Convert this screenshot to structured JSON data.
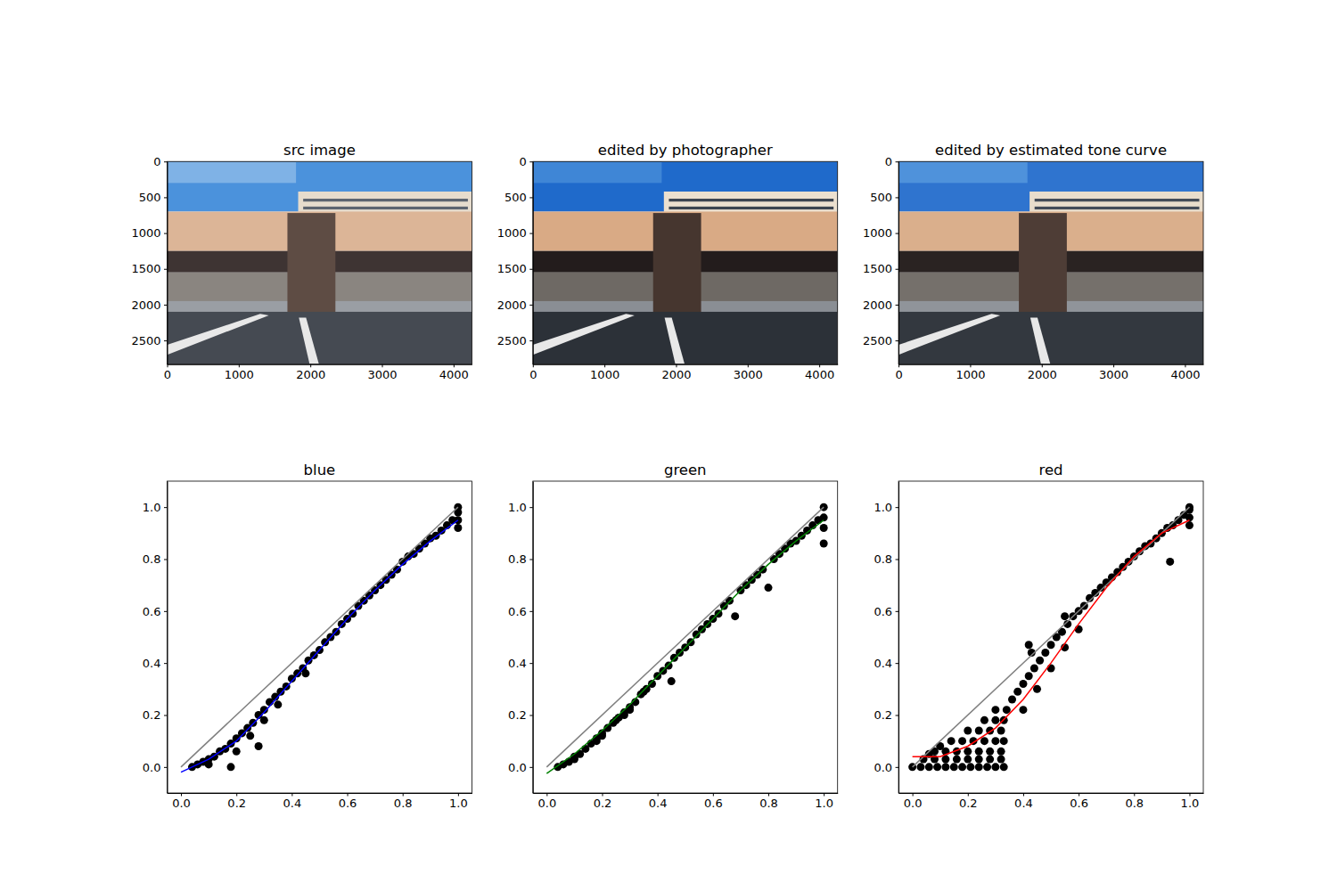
{
  "chart_data": [
    {
      "type": "image",
      "title": "src image",
      "xlim": [
        0,
        4256
      ],
      "ylim": [
        2832,
        0
      ],
      "xticks": [
        0,
        1000,
        2000,
        3000,
        4000
      ],
      "yticks": [
        0,
        500,
        1000,
        1500,
        2000,
        2500
      ]
    },
    {
      "type": "image",
      "title": "edited by photographer",
      "xlim": [
        0,
        4256
      ],
      "ylim": [
        2832,
        0
      ],
      "xticks": [
        0,
        1000,
        2000,
        3000,
        4000
      ],
      "yticks": [
        0,
        500,
        1000,
        1500,
        2000,
        2500
      ]
    },
    {
      "type": "image",
      "title": "edited by estimated tone curve",
      "xlim": [
        0,
        4256
      ],
      "ylim": [
        2832,
        0
      ],
      "xticks": [
        0,
        1000,
        2000,
        3000,
        4000
      ],
      "yticks": [
        0,
        500,
        1000,
        1500,
        2000,
        2500
      ]
    },
    {
      "type": "scatter",
      "title": "blue",
      "xlim": [
        -0.05,
        1.05
      ],
      "ylim": [
        -0.1,
        1.1
      ],
      "xticks": [
        {
          "value": 0,
          "label": "0.0"
        },
        0.2,
        0.4,
        0.6,
        0.8,
        {
          "value": 1,
          "label": "1.0"
        }
      ],
      "yticks": [
        {
          "value": 0,
          "label": "0.0"
        },
        0.2,
        0.4,
        0.6,
        0.8,
        {
          "value": 1,
          "label": "1.0"
        }
      ],
      "series": [
        {
          "type": "scatter",
          "color": "#000000",
          "marker": "circle",
          "x": [
            0.04,
            0.06,
            0.08,
            0.1,
            0.1,
            0.12,
            0.14,
            0.16,
            0.18,
            0.18,
            0.2,
            0.2,
            0.22,
            0.24,
            0.25,
            0.26,
            0.28,
            0.28,
            0.3,
            0.3,
            0.32,
            0.34,
            0.35,
            0.36,
            0.38,
            0.4,
            0.42,
            0.44,
            0.45,
            0.46,
            0.48,
            0.5,
            0.52,
            0.54,
            0.56,
            0.58,
            0.6,
            0.62,
            0.64,
            0.66,
            0.68,
            0.7,
            0.72,
            0.74,
            0.76,
            0.78,
            0.8,
            0.82,
            0.84,
            0.86,
            0.88,
            0.9,
            0.92,
            0.94,
            0.96,
            0.98,
            1.0,
            1.0,
            1.0,
            1.0
          ],
          "values": [
            0.0,
            0.01,
            0.02,
            0.03,
            0.01,
            0.04,
            0.06,
            0.07,
            0.0,
            0.09,
            0.11,
            0.06,
            0.13,
            0.15,
            0.12,
            0.17,
            0.08,
            0.2,
            0.22,
            0.18,
            0.25,
            0.27,
            0.24,
            0.29,
            0.31,
            0.34,
            0.36,
            0.38,
            0.36,
            0.41,
            0.43,
            0.45,
            0.48,
            0.5,
            0.52,
            0.55,
            0.57,
            0.59,
            0.62,
            0.64,
            0.66,
            0.68,
            0.7,
            0.72,
            0.74,
            0.76,
            0.79,
            0.81,
            0.82,
            0.84,
            0.86,
            0.88,
            0.89,
            0.91,
            0.93,
            0.95,
            0.92,
            0.95,
            0.98,
            1.0
          ]
        },
        {
          "type": "line",
          "color": "#808080",
          "line_style": "solid",
          "x": [
            0,
            1
          ],
          "values": [
            0,
            1
          ]
        },
        {
          "type": "line",
          "color": "#0000ff",
          "line_style": "solid",
          "x": [
            0,
            0.1,
            0.2,
            0.3,
            0.4,
            0.5,
            0.6,
            0.7,
            0.8,
            0.9,
            1.0
          ],
          "values": [
            -0.02,
            0.03,
            0.1,
            0.21,
            0.33,
            0.45,
            0.57,
            0.68,
            0.78,
            0.87,
            0.95
          ]
        }
      ]
    },
    {
      "type": "scatter",
      "title": "green",
      "xlim": [
        -0.05,
        1.05
      ],
      "ylim": [
        -0.1,
        1.1
      ],
      "xticks": [
        {
          "value": 0,
          "label": "0.0"
        },
        0.2,
        0.4,
        0.6,
        0.8,
        {
          "value": 1,
          "label": "1.0"
        }
      ],
      "yticks": [
        {
          "value": 0,
          "label": "0.0"
        },
        0.2,
        0.4,
        0.6,
        0.8,
        {
          "value": 1,
          "label": "1.0"
        }
      ],
      "series": [
        {
          "type": "scatter",
          "color": "#000000",
          "marker": "circle",
          "x": [
            0.04,
            0.06,
            0.08,
            0.1,
            0.1,
            0.12,
            0.14,
            0.16,
            0.18,
            0.18,
            0.2,
            0.2,
            0.22,
            0.24,
            0.25,
            0.26,
            0.28,
            0.28,
            0.3,
            0.3,
            0.32,
            0.34,
            0.35,
            0.36,
            0.38,
            0.4,
            0.42,
            0.44,
            0.45,
            0.46,
            0.48,
            0.5,
            0.52,
            0.54,
            0.56,
            0.58,
            0.6,
            0.62,
            0.64,
            0.66,
            0.68,
            0.7,
            0.72,
            0.74,
            0.76,
            0.78,
            0.8,
            0.82,
            0.84,
            0.86,
            0.88,
            0.9,
            0.92,
            0.94,
            0.96,
            0.98,
            1.0,
            1.0,
            1.0,
            1.0
          ],
          "values": [
            0.0,
            0.01,
            0.02,
            0.04,
            0.03,
            0.05,
            0.07,
            0.09,
            0.11,
            0.1,
            0.13,
            0.12,
            0.15,
            0.17,
            0.18,
            0.19,
            0.21,
            0.2,
            0.23,
            0.22,
            0.25,
            0.28,
            0.29,
            0.3,
            0.32,
            0.35,
            0.37,
            0.39,
            0.33,
            0.42,
            0.44,
            0.46,
            0.48,
            0.51,
            0.53,
            0.55,
            0.57,
            0.59,
            0.62,
            0.64,
            0.58,
            0.68,
            0.7,
            0.72,
            0.74,
            0.76,
            0.69,
            0.8,
            0.82,
            0.84,
            0.86,
            0.87,
            0.89,
            0.91,
            0.93,
            0.95,
            0.86,
            0.92,
            0.96,
            1.0
          ]
        },
        {
          "type": "line",
          "color": "#808080",
          "line_style": "solid",
          "x": [
            0,
            1
          ],
          "values": [
            0,
            1
          ]
        },
        {
          "type": "line",
          "color": "#008000",
          "line_style": "solid",
          "x": [
            0,
            0.1,
            0.2,
            0.3,
            0.4,
            0.5,
            0.6,
            0.7,
            0.8,
            0.9,
            1.0
          ],
          "values": [
            -0.025,
            0.05,
            0.14,
            0.24,
            0.35,
            0.46,
            0.57,
            0.68,
            0.78,
            0.87,
            0.95
          ]
        }
      ]
    },
    {
      "type": "scatter",
      "title": "red",
      "xlim": [
        -0.05,
        1.05
      ],
      "ylim": [
        -0.1,
        1.1
      ],
      "xticks": [
        {
          "value": 0,
          "label": "0.0"
        },
        0.2,
        0.4,
        0.6,
        0.8,
        {
          "value": 1,
          "label": "1.0"
        }
      ],
      "yticks": [
        {
          "value": 0,
          "label": "0.0"
        },
        0.2,
        0.4,
        0.6,
        0.8,
        {
          "value": 1,
          "label": "1.0"
        }
      ],
      "series": [
        {
          "type": "scatter",
          "color": "#000000",
          "marker": "circle",
          "x": [
            0,
            0.03,
            0.06,
            0.09,
            0.12,
            0.15,
            0.18,
            0.21,
            0.24,
            0.27,
            0.3,
            0.33,
            0.04,
            0.08,
            0.12,
            0.16,
            0.2,
            0.24,
            0.28,
            0.32,
            0.08,
            0.12,
            0.16,
            0.2,
            0.24,
            0.28,
            0.32,
            0.14,
            0.18,
            0.22,
            0.26,
            0.3,
            0.33,
            0.2,
            0.24,
            0.28,
            0.32,
            0.26,
            0.3,
            0.33,
            0.3,
            0.34,
            0.36,
            0.38,
            0.4,
            0.42,
            0.44,
            0.46,
            0.48,
            0.5,
            0.52,
            0.54,
            0.56,
            0.58,
            0.6,
            0.62,
            0.64,
            0.66,
            0.68,
            0.7,
            0.72,
            0.74,
            0.76,
            0.78,
            0.8,
            0.82,
            0.84,
            0.86,
            0.88,
            0.9,
            0.92,
            0.94,
            0.96,
            0.98,
            0.4,
            0.45,
            0.5,
            0.55,
            0.6,
            0.42,
            0.43,
            0.55,
            0.93,
            1.0,
            1.0,
            1.0,
            1.0,
            0.06,
            0.1
          ],
          "values": [
            0,
            0,
            0,
            0,
            0,
            0,
            0,
            0,
            0,
            0,
            0,
            0,
            0.03,
            0.03,
            0.03,
            0.03,
            0.03,
            0.03,
            0.03,
            0.03,
            0.06,
            0.06,
            0.06,
            0.06,
            0.06,
            0.06,
            0.06,
            0.1,
            0.1,
            0.1,
            0.1,
            0.1,
            0.1,
            0.14,
            0.14,
            0.14,
            0.14,
            0.18,
            0.18,
            0.18,
            0.22,
            0.22,
            0.26,
            0.29,
            0.32,
            0.35,
            0.38,
            0.41,
            0.44,
            0.47,
            0.5,
            0.52,
            0.55,
            0.58,
            0.6,
            0.62,
            0.65,
            0.67,
            0.69,
            0.71,
            0.73,
            0.75,
            0.77,
            0.79,
            0.81,
            0.83,
            0.85,
            0.86,
            0.88,
            0.9,
            0.92,
            0.93,
            0.95,
            0.97,
            0.22,
            0.3,
            0.38,
            0.46,
            0.53,
            0.47,
            0.44,
            0.58,
            0.79,
            0.93,
            0.96,
            0.99,
            1.0,
            0.05,
            0.08
          ]
        },
        {
          "type": "line",
          "color": "#808080",
          "line_style": "solid",
          "x": [
            0,
            1
          ],
          "values": [
            0,
            1
          ]
        },
        {
          "type": "line",
          "color": "#ff0000",
          "line_style": "solid",
          "x": [
            0,
            0.1,
            0.2,
            0.3,
            0.4,
            0.5,
            0.6,
            0.7,
            0.8,
            0.9,
            1.0
          ],
          "values": [
            0.04,
            0.04,
            0.08,
            0.15,
            0.26,
            0.4,
            0.55,
            0.69,
            0.81,
            0.9,
            0.95
          ]
        }
      ]
    }
  ]
}
